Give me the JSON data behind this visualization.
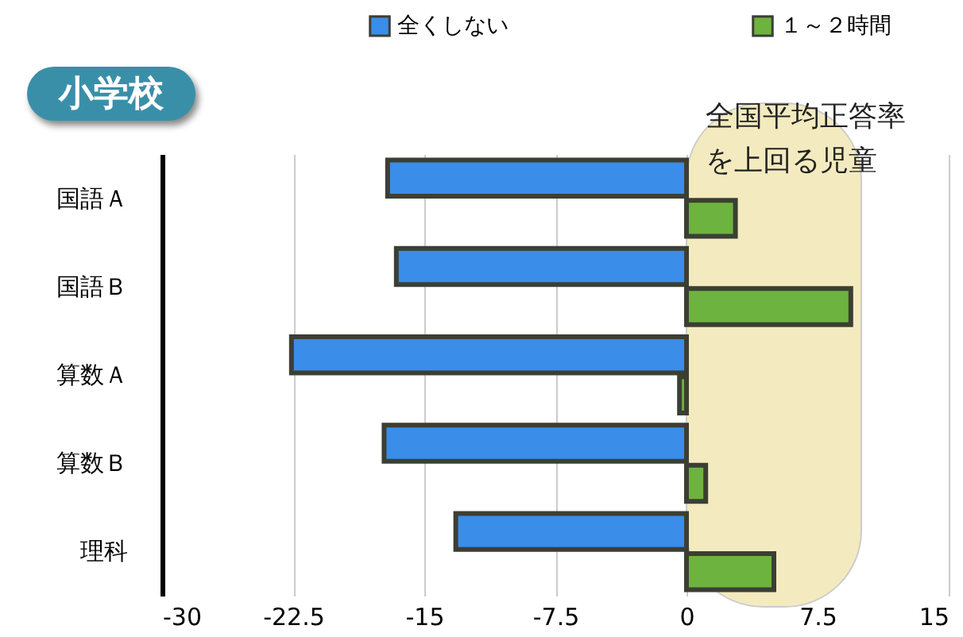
{
  "chart_data": {
    "type": "bar",
    "orientation": "horizontal",
    "title": "小学校",
    "categories": [
      "国語Ａ",
      "国語Ｂ",
      "算数Ａ",
      "算数Ｂ",
      "理科"
    ],
    "series": [
      {
        "name": "全くしない",
        "color": "#3a8de8",
        "values": [
          -17.1,
          -16.6,
          -22.6,
          -17.3,
          -13.2
        ]
      },
      {
        "name": "１～２時間",
        "color": "#6db33f",
        "values": [
          2.8,
          9.4,
          -0.4,
          1.1,
          5.0
        ]
      }
    ],
    "xlim": [
      -30,
      15
    ],
    "xticks": [
      -30,
      -22.5,
      -15,
      -7.5,
      0,
      7.5,
      15
    ],
    "grid": "x",
    "legend": "top",
    "bands": [
      {
        "axis": "x",
        "from": 0,
        "to": 10,
        "label": "全国平均正答率を上回る児童",
        "color": "#f3ebbf"
      }
    ]
  }
}
